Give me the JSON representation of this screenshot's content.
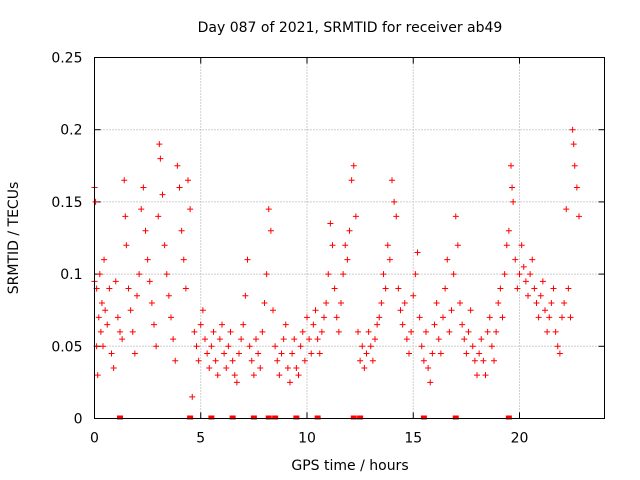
{
  "chart_data": {
    "type": "scatter",
    "title": "Day 087 of 2021, SRMTID for receiver ab49",
    "xlabel": "GPS time / hours",
    "ylabel": "SRMTID / TECUs",
    "xlim": [
      0,
      24
    ],
    "ylim": [
      0,
      0.25
    ],
    "xticks": [
      0,
      5,
      10,
      15,
      20
    ],
    "xtick_labels": [
      "0",
      "5",
      "10",
      "15",
      "20"
    ],
    "yticks": [
      0,
      0.05,
      0.1,
      0.15,
      0.2,
      0.25
    ],
    "ytick_labels": [
      "0",
      "0.05",
      "0.1",
      "0.15",
      "0.2",
      "0.25"
    ],
    "grid": true,
    "legend": "none",
    "marker": "+",
    "color": "#ff0000",
    "series": [
      {
        "name": "SRMTID",
        "points": [
          [
            0.0,
            0.095
          ],
          [
            0.0,
            0.16
          ],
          [
            0.05,
            0.15
          ],
          [
            0.1,
            0.09
          ],
          [
            0.1,
            0.05
          ],
          [
            0.15,
            0.03
          ],
          [
            0.2,
            0.07
          ],
          [
            0.25,
            0.1
          ],
          [
            0.3,
            0.06
          ],
          [
            0.35,
            0.08
          ],
          [
            0.4,
            0.05
          ],
          [
            0.45,
            0.11
          ],
          [
            0.5,
            0.075
          ],
          [
            0.6,
            0.065
          ],
          [
            0.7,
            0.09
          ],
          [
            0.8,
            0.045
          ],
          [
            0.9,
            0.035
          ],
          [
            1.0,
            0.095
          ],
          [
            1.1,
            0.07
          ],
          [
            1.2,
            0.06
          ],
          [
            1.3,
            0.055
          ],
          [
            1.4,
            0.165
          ],
          [
            1.45,
            0.14
          ],
          [
            1.5,
            0.12
          ],
          [
            1.6,
            0.09
          ],
          [
            1.7,
            0.075
          ],
          [
            1.8,
            0.06
          ],
          [
            1.9,
            0.045
          ],
          [
            2.0,
            0.085
          ],
          [
            2.1,
            0.1
          ],
          [
            2.2,
            0.145
          ],
          [
            2.3,
            0.16
          ],
          [
            2.4,
            0.13
          ],
          [
            2.5,
            0.11
          ],
          [
            2.6,
            0.095
          ],
          [
            2.7,
            0.08
          ],
          [
            2.8,
            0.065
          ],
          [
            2.9,
            0.05
          ],
          [
            3.0,
            0.14
          ],
          [
            3.05,
            0.19
          ],
          [
            3.1,
            0.18
          ],
          [
            3.2,
            0.155
          ],
          [
            3.3,
            0.12
          ],
          [
            3.4,
            0.1
          ],
          [
            3.5,
            0.085
          ],
          [
            3.6,
            0.07
          ],
          [
            3.7,
            0.055
          ],
          [
            3.8,
            0.04
          ],
          [
            3.9,
            0.175
          ],
          [
            4.0,
            0.16
          ],
          [
            4.1,
            0.13
          ],
          [
            4.2,
            0.11
          ],
          [
            4.3,
            0.09
          ],
          [
            4.4,
            0.165
          ],
          [
            4.5,
            0.145
          ],
          [
            4.6,
            0.015
          ],
          [
            4.7,
            0.06
          ],
          [
            4.8,
            0.05
          ],
          [
            4.9,
            0.04
          ],
          [
            5.0,
            0.065
          ],
          [
            5.1,
            0.075
          ],
          [
            5.2,
            0.055
          ],
          [
            5.3,
            0.045
          ],
          [
            5.4,
            0.035
          ],
          [
            5.5,
            0.05
          ],
          [
            5.6,
            0.06
          ],
          [
            5.7,
            0.04
          ],
          [
            5.8,
            0.03
          ],
          [
            5.9,
            0.055
          ],
          [
            6.0,
            0.065
          ],
          [
            6.1,
            0.045
          ],
          [
            6.2,
            0.035
          ],
          [
            6.3,
            0.05
          ],
          [
            6.4,
            0.06
          ],
          [
            6.5,
            0.04
          ],
          [
            6.6,
            0.03
          ],
          [
            6.7,
            0.025
          ],
          [
            6.8,
            0.045
          ],
          [
            6.9,
            0.055
          ],
          [
            7.0,
            0.065
          ],
          [
            7.1,
            0.085
          ],
          [
            7.2,
            0.11
          ],
          [
            7.3,
            0.05
          ],
          [
            7.4,
            0.04
          ],
          [
            7.5,
            0.03
          ],
          [
            7.6,
            0.055
          ],
          [
            7.7,
            0.045
          ],
          [
            7.8,
            0.035
          ],
          [
            7.9,
            0.06
          ],
          [
            8.0,
            0.08
          ],
          [
            8.1,
            0.1
          ],
          [
            8.2,
            0.145
          ],
          [
            8.3,
            0.13
          ],
          [
            8.4,
            0.075
          ],
          [
            8.5,
            0.05
          ],
          [
            8.6,
            0.04
          ],
          [
            8.7,
            0.03
          ],
          [
            8.8,
            0.045
          ],
          [
            8.9,
            0.055
          ],
          [
            9.0,
            0.065
          ],
          [
            9.1,
            0.035
          ],
          [
            9.2,
            0.025
          ],
          [
            9.3,
            0.045
          ],
          [
            9.4,
            0.055
          ],
          [
            9.5,
            0.035
          ],
          [
            9.6,
            0.03
          ],
          [
            9.7,
            0.05
          ],
          [
            9.8,
            0.06
          ],
          [
            9.9,
            0.04
          ],
          [
            10.0,
            0.07
          ],
          [
            10.1,
            0.055
          ],
          [
            10.2,
            0.045
          ],
          [
            10.3,
            0.065
          ],
          [
            10.4,
            0.075
          ],
          [
            10.5,
            0.055
          ],
          [
            10.6,
            0.045
          ],
          [
            10.7,
            0.06
          ],
          [
            10.8,
            0.07
          ],
          [
            10.9,
            0.08
          ],
          [
            11.0,
            0.1
          ],
          [
            11.1,
            0.135
          ],
          [
            11.2,
            0.12
          ],
          [
            11.3,
            0.09
          ],
          [
            11.4,
            0.07
          ],
          [
            11.5,
            0.06
          ],
          [
            11.6,
            0.08
          ],
          [
            11.7,
            0.1
          ],
          [
            11.8,
            0.12
          ],
          [
            11.9,
            0.11
          ],
          [
            12.0,
            0.13
          ],
          [
            12.1,
            0.165
          ],
          [
            12.2,
            0.175
          ],
          [
            12.3,
            0.14
          ],
          [
            12.4,
            0.06
          ],
          [
            12.5,
            0.04
          ],
          [
            12.6,
            0.05
          ],
          [
            12.7,
            0.035
          ],
          [
            12.8,
            0.045
          ],
          [
            12.9,
            0.06
          ],
          [
            13.0,
            0.05
          ],
          [
            13.1,
            0.04
          ],
          [
            13.2,
            0.055
          ],
          [
            13.3,
            0.065
          ],
          [
            13.4,
            0.07
          ],
          [
            13.5,
            0.08
          ],
          [
            13.6,
            0.1
          ],
          [
            13.7,
            0.09
          ],
          [
            13.8,
            0.12
          ],
          [
            13.9,
            0.11
          ],
          [
            14.0,
            0.165
          ],
          [
            14.1,
            0.15
          ],
          [
            14.2,
            0.14
          ],
          [
            14.3,
            0.09
          ],
          [
            14.4,
            0.075
          ],
          [
            14.5,
            0.065
          ],
          [
            14.6,
            0.08
          ],
          [
            14.7,
            0.055
          ],
          [
            14.8,
            0.045
          ],
          [
            14.9,
            0.06
          ],
          [
            15.0,
            0.085
          ],
          [
            15.1,
            0.1
          ],
          [
            15.2,
            0.115
          ],
          [
            15.3,
            0.07
          ],
          [
            15.4,
            0.05
          ],
          [
            15.5,
            0.04
          ],
          [
            15.6,
            0.06
          ],
          [
            15.7,
            0.035
          ],
          [
            15.8,
            0.025
          ],
          [
            15.9,
            0.045
          ],
          [
            16.0,
            0.065
          ],
          [
            16.1,
            0.08
          ],
          [
            16.2,
            0.055
          ],
          [
            16.3,
            0.045
          ],
          [
            16.4,
            0.07
          ],
          [
            16.5,
            0.09
          ],
          [
            16.6,
            0.11
          ],
          [
            16.7,
            0.06
          ],
          [
            16.8,
            0.075
          ],
          [
            16.9,
            0.1
          ],
          [
            17.0,
            0.14
          ],
          [
            17.1,
            0.12
          ],
          [
            17.2,
            0.08
          ],
          [
            17.3,
            0.065
          ],
          [
            17.4,
            0.055
          ],
          [
            17.5,
            0.045
          ],
          [
            17.6,
            0.06
          ],
          [
            17.7,
            0.075
          ],
          [
            17.8,
            0.05
          ],
          [
            17.9,
            0.04
          ],
          [
            18.0,
            0.03
          ],
          [
            18.1,
            0.045
          ],
          [
            18.2,
            0.055
          ],
          [
            18.3,
            0.04
          ],
          [
            18.4,
            0.03
          ],
          [
            18.5,
            0.06
          ],
          [
            18.6,
            0.07
          ],
          [
            18.7,
            0.05
          ],
          [
            18.8,
            0.04
          ],
          [
            18.9,
            0.06
          ],
          [
            19.0,
            0.08
          ],
          [
            19.1,
            0.09
          ],
          [
            19.2,
            0.07
          ],
          [
            19.3,
            0.1
          ],
          [
            19.4,
            0.12
          ],
          [
            19.5,
            0.13
          ],
          [
            19.6,
            0.175
          ],
          [
            19.65,
            0.16
          ],
          [
            19.7,
            0.15
          ],
          [
            19.8,
            0.11
          ],
          [
            19.9,
            0.09
          ],
          [
            20.0,
            0.1
          ],
          [
            20.1,
            0.12
          ],
          [
            20.2,
            0.105
          ],
          [
            20.3,
            0.095
          ],
          [
            20.4,
            0.085
          ],
          [
            20.5,
            0.1
          ],
          [
            20.6,
            0.11
          ],
          [
            20.7,
            0.09
          ],
          [
            20.8,
            0.08
          ],
          [
            20.9,
            0.07
          ],
          [
            21.0,
            0.085
          ],
          [
            21.1,
            0.095
          ],
          [
            21.2,
            0.075
          ],
          [
            21.3,
            0.06
          ],
          [
            21.4,
            0.07
          ],
          [
            21.5,
            0.08
          ],
          [
            21.6,
            0.09
          ],
          [
            21.7,
            0.06
          ],
          [
            21.8,
            0.05
          ],
          [
            21.9,
            0.045
          ],
          [
            22.0,
            0.07
          ],
          [
            22.1,
            0.08
          ],
          [
            22.2,
            0.145
          ],
          [
            22.3,
            0.09
          ],
          [
            22.4,
            0.07
          ],
          [
            22.5,
            0.2
          ],
          [
            22.55,
            0.19
          ],
          [
            22.6,
            0.175
          ],
          [
            22.7,
            0.16
          ],
          [
            22.8,
            0.14
          ]
        ],
        "gaps_at_zero": [
          1.2,
          4.5,
          5.5,
          6.5,
          7.5,
          8.2,
          8.5,
          9.5,
          10.5,
          12.2,
          12.5,
          15.5,
          17.0,
          19.5
        ]
      }
    ]
  }
}
